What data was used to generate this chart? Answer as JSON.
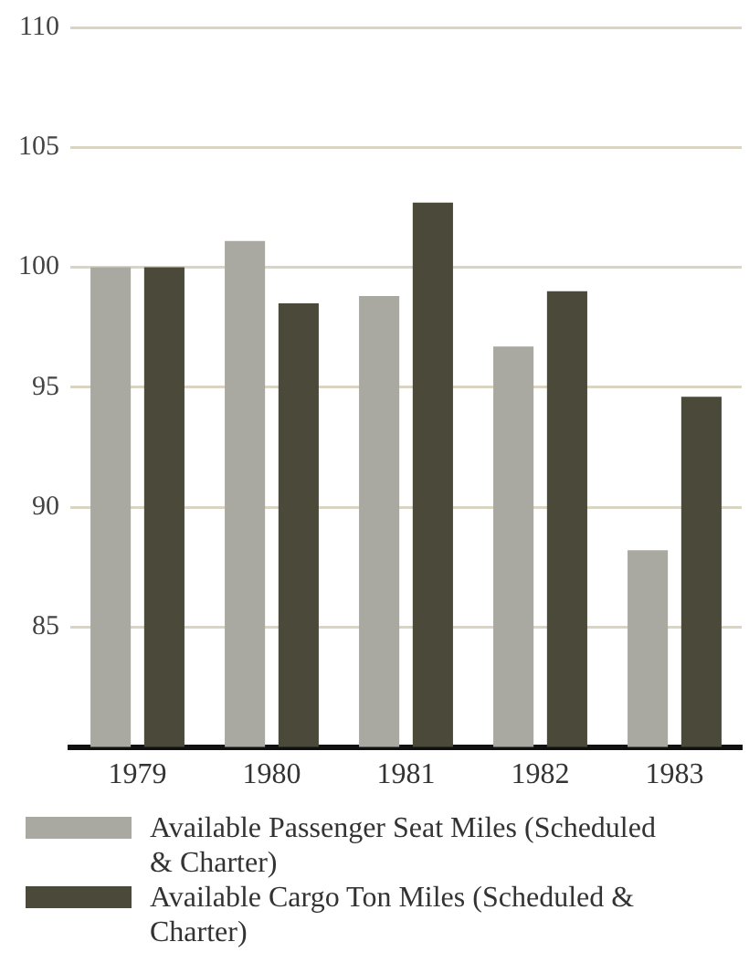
{
  "chart_data": {
    "type": "bar",
    "categories": [
      "1979",
      "1980",
      "1981",
      "1982",
      "1983"
    ],
    "series": [
      {
        "name": "Available Passenger Seat Miles (Scheduled & Charter)",
        "color": "#a9a9a1",
        "values": [
          100,
          101.1,
          98.8,
          96.7,
          88.2
        ]
      },
      {
        "name": "Available Cargo Ton Miles (Scheduled & Charter)",
        "color": "#4b4939",
        "values": [
          100,
          98.5,
          102.7,
          99.0,
          94.6
        ]
      }
    ],
    "ylim": [
      80,
      110
    ],
    "yticks": [
      {
        "value": 80,
        "label": null
      },
      85,
      90,
      95,
      100,
      105,
      110
    ],
    "grid": "y",
    "legend": "bottom"
  }
}
